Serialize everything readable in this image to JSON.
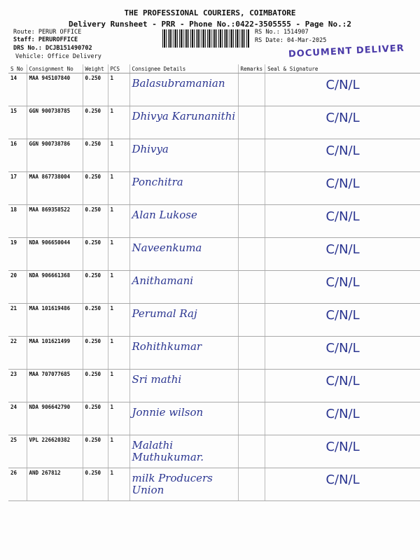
{
  "header": {
    "company": "THE PROFESSIONAL COURIERS, COIMBATORE",
    "subtitle": "Delivery Runsheet - PRR - Phone No.:0422-3505555 - Page No.:2",
    "route": "Route: PERUR OFFICE",
    "staff": "Staff: PERUROFFICE",
    "drs": "DRS No.: DCJB151490702",
    "vehicle": "Vehicle: Office Delivery",
    "rs_no": "RS No.: 1514907",
    "rs_date": "RS Date: 04-Mar-2025",
    "stamp": "DOCUMENT DELIVER"
  },
  "columns": [
    "S No",
    "Consignment No",
    "Weight",
    "PCS",
    "Consignee Details",
    "Remarks",
    "Seal & Signature"
  ],
  "rows": [
    {
      "sno": "14",
      "cn": "MAA 945107840",
      "w": "0.250",
      "pcs": "1",
      "name": "Balasubramanian",
      "sig": "C/N/L"
    },
    {
      "sno": "15",
      "cn": "GGN 900738785",
      "w": "0.250",
      "pcs": "1",
      "name": "Dhivya Karunanithi",
      "sig": "C/N/L"
    },
    {
      "sno": "16",
      "cn": "GGN 900738786",
      "w": "0.250",
      "pcs": "1",
      "name": "Dhivya",
      "sig": "C/N/L"
    },
    {
      "sno": "17",
      "cn": "MAA 867738004",
      "w": "0.250",
      "pcs": "1",
      "name": "Ponchitra",
      "sig": "C/N/L"
    },
    {
      "sno": "18",
      "cn": "MAA 869358522",
      "w": "0.250",
      "pcs": "1",
      "name": "Alan Lukose",
      "sig": "C/N/L"
    },
    {
      "sno": "19",
      "cn": "NDA 906650044",
      "w": "0.250",
      "pcs": "1",
      "name": "Naveenkuma",
      "sig": "C/N/L"
    },
    {
      "sno": "20",
      "cn": "NDA 906661368",
      "w": "0.250",
      "pcs": "1",
      "name": "Anithamani",
      "sig": "C/N/L"
    },
    {
      "sno": "21",
      "cn": "MAA 101619486",
      "w": "0.250",
      "pcs": "1",
      "name": "Perumal Raj",
      "sig": "C/N/L"
    },
    {
      "sno": "22",
      "cn": "MAA 101621499",
      "w": "0.250",
      "pcs": "1",
      "name": "Rohithkumar",
      "sig": "C/N/L"
    },
    {
      "sno": "23",
      "cn": "MAA 707077685",
      "w": "0.250",
      "pcs": "1",
      "name": "Sri mathi",
      "sig": "C/N/L"
    },
    {
      "sno": "24",
      "cn": "NDA 906642790",
      "w": "0.250",
      "pcs": "1",
      "name": "Jonnie wilson",
      "sig": "C/N/L"
    },
    {
      "sno": "25",
      "cn": "VPL 226620382",
      "w": "0.250",
      "pcs": "1",
      "name": "Malathi Muthukumar.",
      "sig": "C/N/L"
    },
    {
      "sno": "26",
      "cn": "AND 267812",
      "w": "0.250",
      "pcs": "1",
      "name": "milk Producers Union",
      "sig": "C/N/L"
    }
  ]
}
